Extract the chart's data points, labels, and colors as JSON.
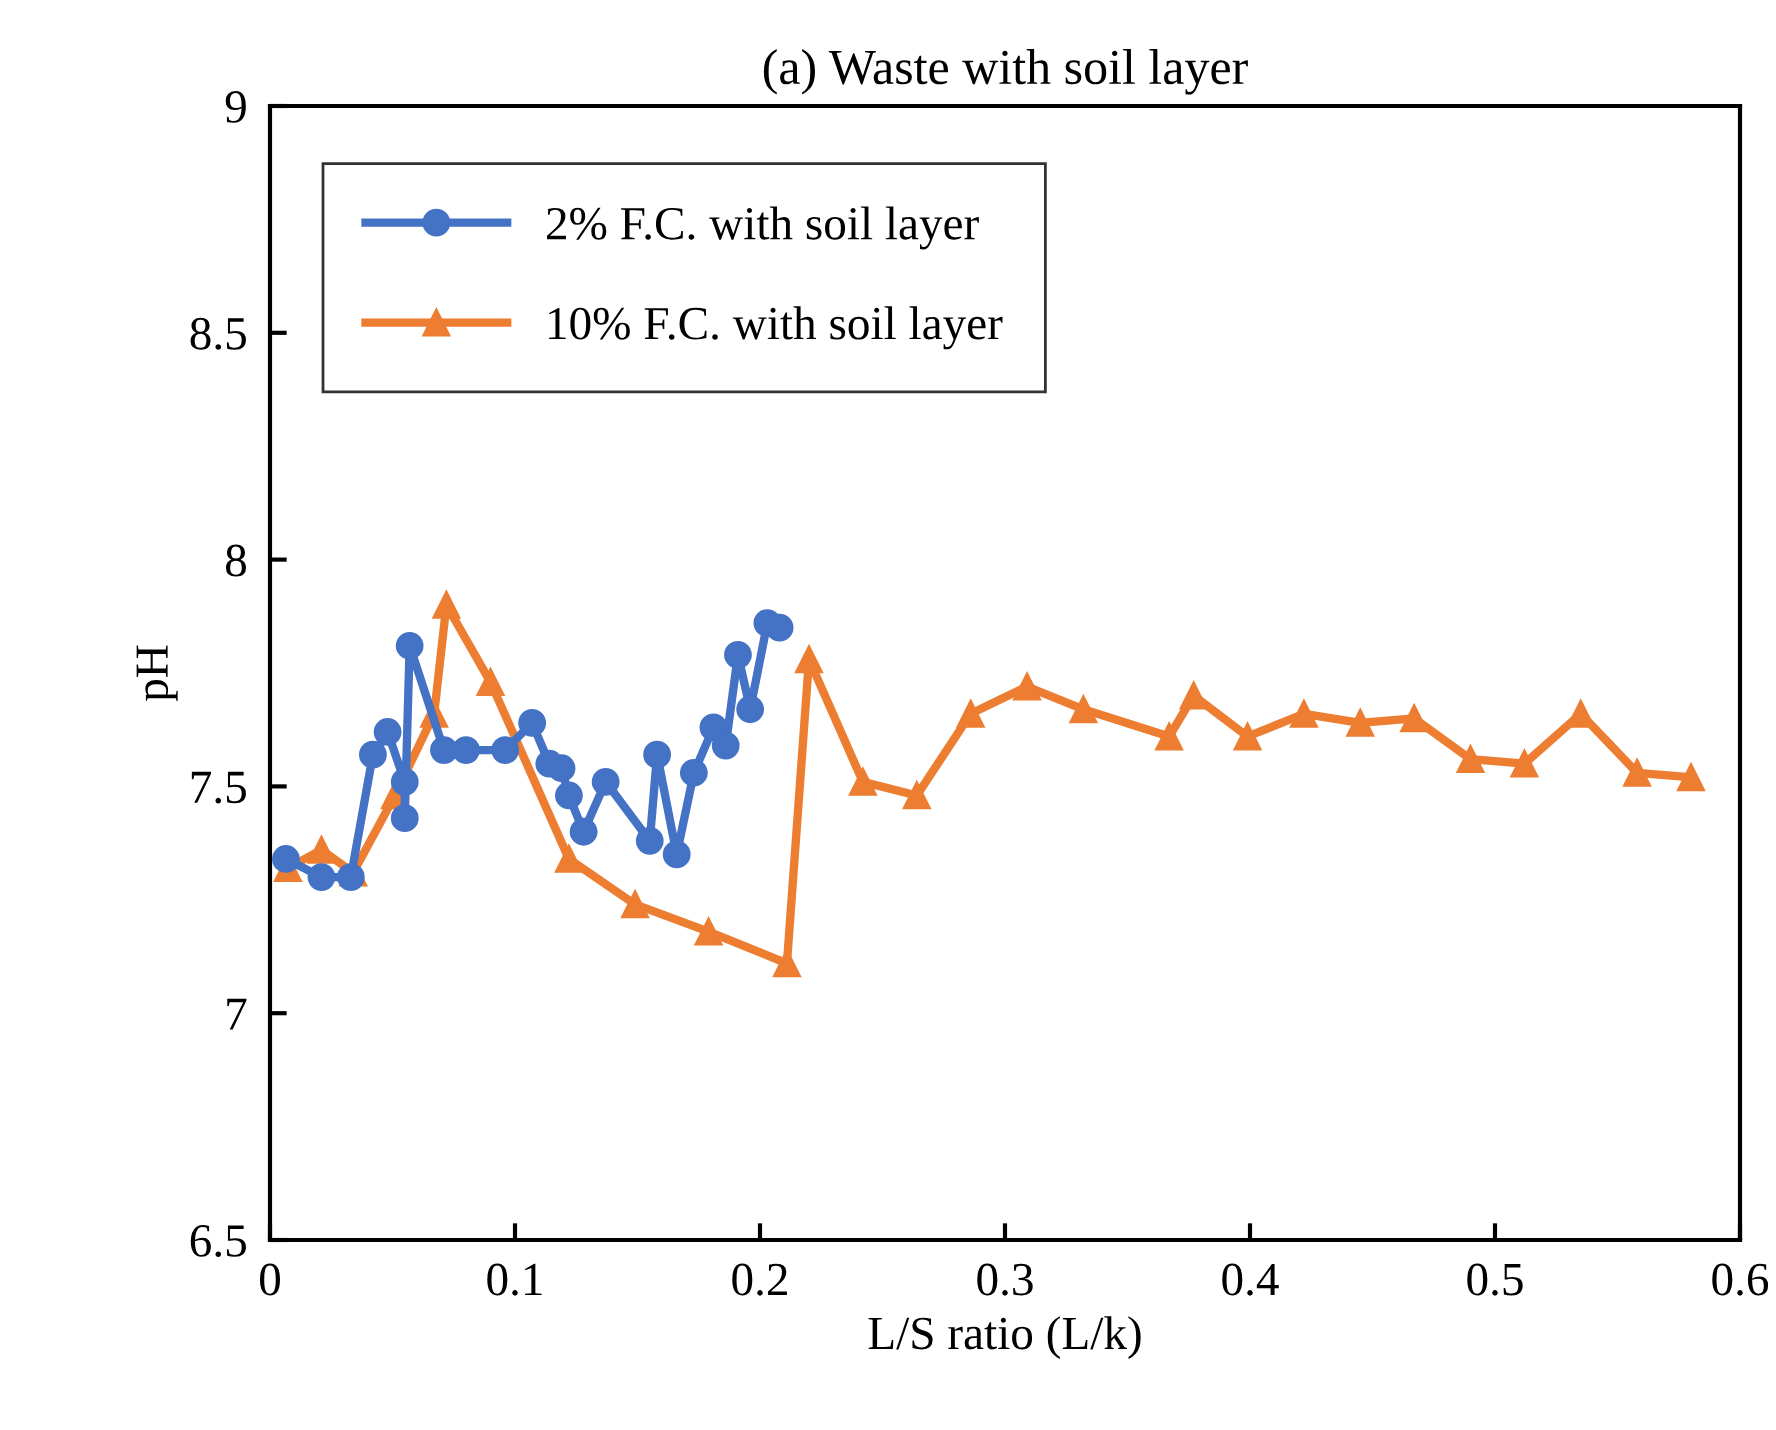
{
  "chart_data": {
    "type": "line",
    "title": "(a) Waste with soil layer",
    "xlabel": "L/S ratio (L/k)",
    "ylabel": "pH",
    "xlim": [
      0,
      0.6
    ],
    "xticks": [
      0,
      0.1,
      0.2,
      0.3,
      0.4,
      0.5,
      0.6
    ],
    "ylim": [
      6.5,
      9
    ],
    "yticks": [
      6.5,
      7,
      7.5,
      8,
      8.5,
      9
    ],
    "grid": false,
    "legend": "top left",
    "line_style": "solid",
    "series": [
      {
        "name": "2% F.C. with soil layer",
        "color": "#4472c4",
        "marker": "circle",
        "x": [
          0.0065,
          0.021,
          0.033,
          0.042,
          0.048,
          0.055,
          0.055,
          0.057,
          0.071,
          0.08,
          0.096,
          0.107,
          0.114,
          0.119,
          0.122,
          0.128,
          0.137,
          0.155,
          0.158,
          0.166,
          0.173,
          0.181,
          0.186,
          0.191,
          0.196,
          0.203,
          0.208
        ],
        "values": [
          7.34,
          7.3,
          7.3,
          7.57,
          7.62,
          7.51,
          7.43,
          7.81,
          7.58,
          7.58,
          7.58,
          7.64,
          7.55,
          7.54,
          7.48,
          7.4,
          7.51,
          7.38,
          7.57,
          7.35,
          7.53,
          7.63,
          7.59,
          7.79,
          7.67,
          7.86,
          7.85
        ]
      },
      {
        "name": "10% F.C. with soil layer",
        "color": "#ed7d31",
        "marker": "triangle",
        "x": [
          0.0073,
          0.021,
          0.034,
          0.051,
          0.067,
          0.072,
          0.09,
          0.122,
          0.149,
          0.179,
          0.211,
          0.22,
          0.242,
          0.264,
          0.286,
          0.309,
          0.332,
          0.367,
          0.377,
          0.399,
          0.422,
          0.445,
          0.467,
          0.49,
          0.512,
          0.535,
          0.558,
          0.58
        ],
        "values": [
          7.32,
          7.36,
          7.31,
          7.48,
          7.66,
          7.9,
          7.73,
          7.34,
          7.24,
          7.18,
          7.11,
          7.78,
          7.51,
          7.48,
          7.66,
          7.72,
          7.67,
          7.61,
          7.7,
          7.61,
          7.66,
          7.64,
          7.65,
          7.56,
          7.55,
          7.66,
          7.53,
          7.52
        ]
      }
    ]
  }
}
